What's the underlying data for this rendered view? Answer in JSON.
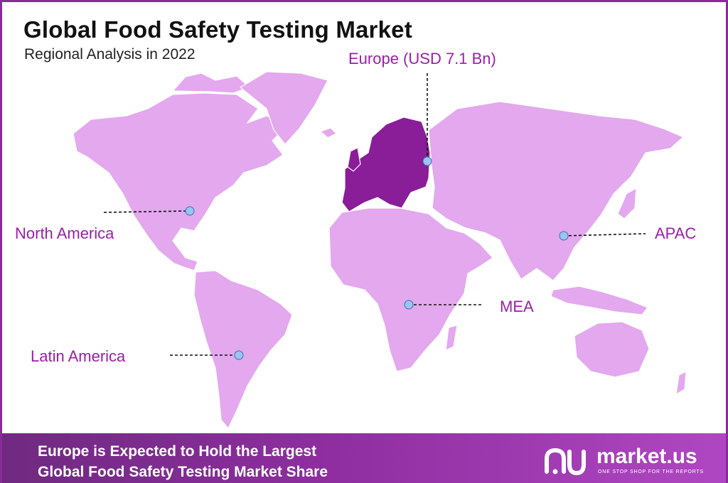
{
  "header": {
    "title": "Global Food Safety Testing Market",
    "subtitle": "Regional Analysis in 2022"
  },
  "map": {
    "regions": [
      {
        "name": "North America"
      },
      {
        "name": "Europe (USD 7.1 Bn)",
        "highlighted": true
      },
      {
        "name": "APAC"
      },
      {
        "name": "MEA"
      },
      {
        "name": "Latin America"
      }
    ],
    "colors": {
      "land": "#e3a8ee",
      "highlight": "#8a1d98",
      "marker": "#9dc3f2",
      "label": "#9b1fa8"
    }
  },
  "footer": {
    "line1": "Europe is Expected to Hold the Largest",
    "line2": "Global Food Safety Testing Market Share",
    "logo_name": "market.us",
    "logo_tagline": "ONE STOP SHOP FOR THE REPORTS"
  }
}
